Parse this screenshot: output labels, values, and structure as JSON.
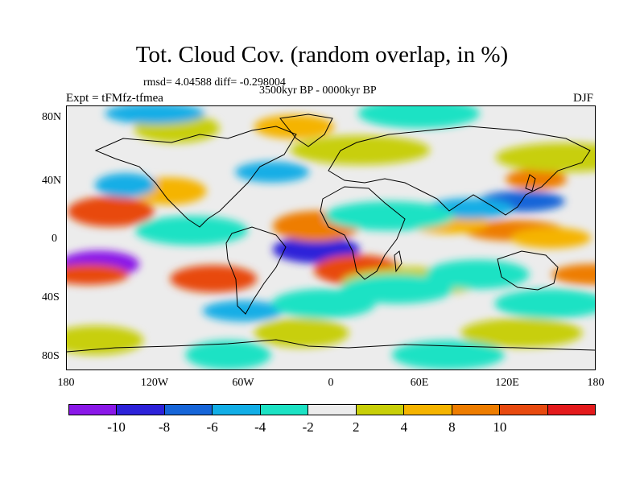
{
  "title": "Tot. Cloud Cov. (random overlap, in %)",
  "stats": "rmsd= 4.04588 diff= -0.298004",
  "period": "3500kyr BP - 0000kyr BP",
  "experiment": "Expt = tFMfz-tfmea",
  "season": "DJF",
  "lat_ticks": [
    "80N",
    "40N",
    "0",
    "40S",
    "80S"
  ],
  "lon_ticks": [
    "180",
    "120W",
    "60W",
    "0",
    "60E",
    "120E",
    "180"
  ],
  "colorbar": {
    "colors": [
      "#8a18e8",
      "#2d22d9",
      "#1665d8",
      "#12aee6",
      "#1ce2c4",
      "#ececec",
      "#c8cf08",
      "#f5b400",
      "#ee7d00",
      "#e84a10",
      "#e41a1c"
    ],
    "tick_labels": [
      "-10",
      "-8",
      "-6",
      "-4",
      "-2",
      "2",
      "4",
      "8",
      "10"
    ]
  },
  "map_data": {
    "projection": "cylindrical equidistant",
    "lon_range": [
      -180,
      180
    ],
    "lat_range": [
      -90,
      90
    ],
    "background_value_class": "-2 to 2",
    "anomaly_blobs": [
      {
        "lon": -158,
        "lat": -18,
        "class": 0
      },
      {
        "lon": -10,
        "lat": -8,
        "class": 1
      },
      {
        "lon": 18,
        "lat": -22,
        "class": 9
      },
      {
        "lon": -150,
        "lat": 18,
        "class": 9
      },
      {
        "lon": -165,
        "lat": -25,
        "class": 9
      },
      {
        "lon": -80,
        "lat": -28,
        "class": 9
      },
      {
        "lon": -10,
        "lat": 8,
        "class": 8
      },
      {
        "lon": 140,
        "lat": 40,
        "class": 8
      },
      {
        "lon": 178,
        "lat": -25,
        "class": 8
      },
      {
        "lon": 125,
        "lat": 5,
        "class": 8
      },
      {
        "lon": 150,
        "lat": 0,
        "class": 7
      },
      {
        "lon": -25,
        "lat": 76,
        "class": 7
      },
      {
        "lon": -110,
        "lat": 32,
        "class": 7
      },
      {
        "lon": 80,
        "lat": 10,
        "class": 7
      },
      {
        "lon": -160,
        "lat": -70,
        "class": 6
      },
      {
        "lon": -20,
        "lat": -65,
        "class": 6
      },
      {
        "lon": 130,
        "lat": -65,
        "class": 6
      },
      {
        "lon": 55,
        "lat": -30,
        "class": 6
      },
      {
        "lon": 160,
        "lat": 55,
        "class": 6
      },
      {
        "lon": -105,
        "lat": 75,
        "class": 6
      },
      {
        "lon": 20,
        "lat": 60,
        "class": 6
      },
      {
        "lon": 130,
        "lat": 25,
        "class": 2
      },
      {
        "lon": 95,
        "lat": 20,
        "class": 3
      },
      {
        "lon": -140,
        "lat": 36,
        "class": 3
      },
      {
        "lon": -60,
        "lat": -50,
        "class": 3
      },
      {
        "lon": -40,
        "lat": 45,
        "class": 3
      },
      {
        "lon": 45,
        "lat": -35,
        "class": 4
      },
      {
        "lon": -5,
        "lat": -45,
        "class": 4
      },
      {
        "lon": -95,
        "lat": 5,
        "class": 4
      },
      {
        "lon": 100,
        "lat": -25,
        "class": 4
      },
      {
        "lon": 150,
        "lat": -45,
        "class": 4
      },
      {
        "lon": 40,
        "lat": 15,
        "class": 4
      },
      {
        "lon": -120,
        "lat": 85,
        "class": 3
      },
      {
        "lon": 60,
        "lat": 85,
        "class": 4
      },
      {
        "lon": -70,
        "lat": -80,
        "class": 4
      },
      {
        "lon": 80,
        "lat": -80,
        "class": 4
      }
    ]
  }
}
